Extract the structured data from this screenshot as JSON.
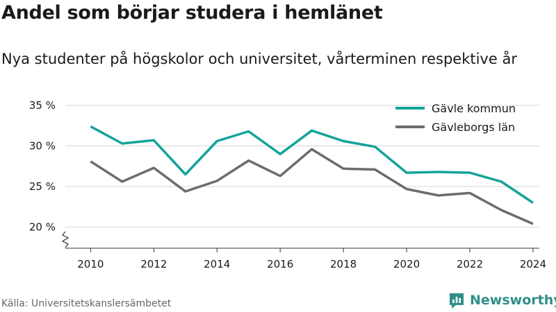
{
  "header": {
    "title": "Andel som börjar studera i hemlänet",
    "subtitle": "Nya studenter på högskolor och universitet, vårterminen respektive år"
  },
  "footer": {
    "source": "Källa: Universitetskanslersämbetet",
    "brand": "Newsworthy",
    "brand_color": "#2f8f88"
  },
  "chart_data": {
    "type": "line",
    "title": "Andel som börjar studera i hemlänet",
    "subtitle": "Nya studenter på högskolor och universitet, vårterminen respektive år",
    "x": [
      2010,
      2011,
      2012,
      2013,
      2014,
      2015,
      2016,
      2017,
      2018,
      2019,
      2020,
      2021,
      2022,
      2023,
      2024
    ],
    "xticks": [
      2010,
      2012,
      2014,
      2016,
      2018,
      2020,
      2022,
      2024
    ],
    "xtick_labels": [
      "2010",
      "2012",
      "2014",
      "2016",
      "2018",
      "2020",
      "2022",
      "2024"
    ],
    "yticks": [
      20,
      25,
      30,
      35
    ],
    "ytick_labels": [
      "20 %",
      "25 %",
      "30 %",
      "35 %"
    ],
    "xlim": [
      2009.2,
      2024.2
    ],
    "ylim": [
      17.4,
      35
    ],
    "axis_break": true,
    "grid": "horizontal",
    "legend": "top-right",
    "series": [
      {
        "name": "Gävle kommun",
        "color": "#14a39a",
        "values": [
          32.4,
          30.3,
          30.7,
          26.5,
          30.6,
          31.8,
          29.0,
          31.9,
          30.6,
          29.9,
          26.7,
          26.8,
          26.7,
          25.6,
          23.0
        ]
      },
      {
        "name": "Gävleborgs län",
        "color": "#6b6b70",
        "values": [
          28.1,
          25.6,
          27.3,
          24.4,
          25.7,
          28.2,
          26.3,
          29.6,
          27.2,
          27.1,
          24.7,
          23.9,
          24.2,
          22.1,
          20.4
        ]
      }
    ]
  }
}
